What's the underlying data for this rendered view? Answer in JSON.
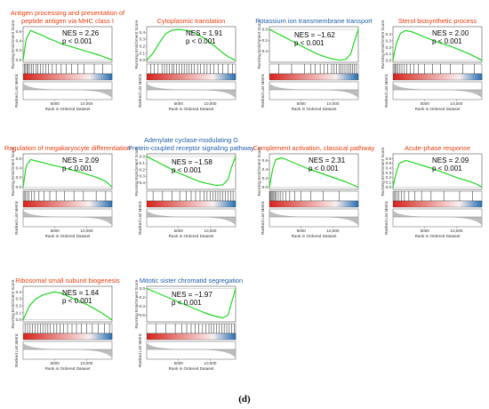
{
  "caption": "(d)",
  "colors": {
    "up_title": "#e8400f",
    "down_title": "#1f5fa8",
    "es_line": "#1fd81f",
    "heat_red": "#d7261e",
    "heat_blue": "#2f74b5",
    "metric_fill": "#bdbdbd"
  },
  "chart_data": [
    {
      "type": "line",
      "title": "Antigen processing and presentation of peptide antigen via MHC class I",
      "title_lines": [
        "Antigen processing and presentation of",
        "peptide antigen via MHC class I"
      ],
      "direction": "up",
      "nes": "NES = 2.26",
      "pval": "p < 0.001",
      "ylabel": "Running Enrichment Score",
      "metric_label": "Ranked List Metric",
      "xlabel": "Rank in Ordered Dataset",
      "yticks": [
        "0.6",
        "0.4",
        "0.2",
        "0.0"
      ],
      "ylim": [
        -0.05,
        0.7
      ],
      "xticks": [
        "5000",
        "10,000"
      ],
      "x": [
        0,
        500,
        1200,
        2000,
        3000,
        4000,
        5000,
        6000,
        7000,
        8000,
        9000,
        10000,
        11000,
        12000,
        13000,
        14000
      ],
      "es": [
        0.0,
        0.45,
        0.62,
        0.57,
        0.52,
        0.45,
        0.4,
        0.34,
        0.3,
        0.26,
        0.22,
        0.18,
        0.14,
        0.1,
        0.05,
        0.0
      ],
      "hits": [
        200,
        400,
        600,
        800,
        1000,
        1300,
        1600,
        2000,
        2300,
        2700,
        3100,
        3600,
        4000,
        4600,
        5200,
        6000,
        6800,
        7600,
        8600,
        9600,
        11200,
        12500
      ]
    },
    {
      "type": "line",
      "title": "Cytoplasmic translation",
      "title_lines": [
        "Cytoplasmic translation"
      ],
      "direction": "up",
      "nes": "NES = 1.91",
      "pval": "p < 0.001",
      "ylabel": "Running Enrichment Score",
      "metric_label": "Ranked List Metric",
      "xlabel": "Rank in Ordered Dataset",
      "yticks": [
        "0.4",
        "0.3",
        "0.2",
        "0.1",
        "0.0"
      ],
      "ylim": [
        -0.03,
        0.48
      ],
      "xticks": [
        "5000",
        "10,000"
      ],
      "x": [
        0,
        1000,
        2000,
        3000,
        4000,
        5000,
        6000,
        7000,
        8000,
        9000,
        10000,
        11000,
        12000,
        13000,
        14000
      ],
      "es": [
        0.0,
        0.1,
        0.25,
        0.38,
        0.43,
        0.44,
        0.43,
        0.41,
        0.37,
        0.32,
        0.25,
        0.18,
        0.1,
        0.04,
        0.0
      ],
      "hits": [
        600,
        1200,
        1800,
        2400,
        2800,
        3200,
        3600,
        4000,
        4300,
        4700,
        5100,
        5500,
        5900,
        6300,
        6700,
        7100,
        7500,
        8000,
        8500,
        9000,
        9500,
        10000,
        10600,
        11300,
        12000,
        12800,
        13500
      ]
    },
    {
      "type": "line",
      "title": "Potassium ion transmembrane transport",
      "title_lines": [
        "Potassium ion transmembrane transport"
      ],
      "direction": "down",
      "nes": "NES = −1.62",
      "pval": "p < 0.001",
      "ylabel": "Running Enrichment Score",
      "metric_label": "Ranked List Metric",
      "xlabel": "Rank in Ordered Dataset",
      "yticks": [
        "0.0",
        "−0.2",
        "−0.4"
      ],
      "ylim": [
        -0.6,
        0.05
      ],
      "xticks": [
        "5000",
        "10,000"
      ],
      "x": [
        0,
        1000,
        2000,
        3000,
        4000,
        5000,
        6000,
        7000,
        8000,
        9000,
        10000,
        11000,
        12000,
        12800,
        13300,
        14000
      ],
      "es": [
        0.0,
        -0.06,
        -0.12,
        -0.18,
        -0.24,
        -0.3,
        -0.36,
        -0.42,
        -0.47,
        -0.51,
        -0.54,
        -0.56,
        -0.55,
        -0.45,
        -0.25,
        0.0
      ],
      "hits": [
        1500,
        3500,
        5500,
        6500,
        7200,
        8000,
        8600,
        9200,
        9800,
        10200,
        10600,
        11000,
        11300,
        11600,
        11900,
        12200,
        12500,
        12800,
        13100,
        13400,
        13700
      ]
    },
    {
      "type": "line",
      "title": "Sterol biosynthetic process",
      "title_lines": [
        "Sterol biosynthetic process"
      ],
      "direction": "up",
      "nes": "NES = 2.00",
      "pval": "p < 0.001",
      "ylabel": "Running Enrichment Score",
      "metric_label": "Ranked List Metric",
      "xlabel": "Rank in Ordered Dataset",
      "yticks": [
        "0.4",
        "0.3",
        "0.2",
        "0.1",
        "0.0"
      ],
      "ylim": [
        -0.03,
        0.52
      ],
      "xticks": [
        "5000",
        "10,000"
      ],
      "x": [
        0,
        500,
        1200,
        2000,
        3000,
        4000,
        5000,
        6000,
        7000,
        8000,
        9000,
        10000,
        11000,
        12000,
        13000,
        14000
      ],
      "es": [
        0.0,
        0.25,
        0.42,
        0.46,
        0.44,
        0.4,
        0.36,
        0.32,
        0.28,
        0.25,
        0.22,
        0.18,
        0.14,
        0.1,
        0.05,
        0.0
      ],
      "hits": [
        150,
        350,
        550,
        800,
        1100,
        1400,
        1800,
        2200,
        2700,
        3300,
        4000,
        5000,
        6200,
        7500,
        9000,
        11000,
        12800
      ]
    },
    {
      "type": "line",
      "title": "Regulation of megakaryocyte differentiation",
      "title_lines": [
        "Regulation of megakaryocyte differentiation"
      ],
      "direction": "up",
      "nes": "NES = 2.09",
      "pval": "p < 0.001",
      "ylabel": "Running Enrichment Score",
      "metric_label": "Ranked List Metric",
      "xlabel": "Rank in Ordered Dataset",
      "yticks": [
        "0.6",
        "0.4",
        "0.2",
        "0.0"
      ],
      "ylim": [
        -0.05,
        0.7
      ],
      "xticks": [
        "5000",
        "10,000"
      ],
      "x": [
        0,
        500,
        1200,
        2000,
        3000,
        4000,
        5000,
        6000,
        7000,
        8000,
        9000,
        10000,
        11000,
        12000,
        13000,
        14000
      ],
      "es": [
        0.0,
        0.45,
        0.58,
        0.55,
        0.52,
        0.48,
        0.45,
        0.42,
        0.38,
        0.35,
        0.31,
        0.27,
        0.23,
        0.18,
        0.12,
        0.0
      ],
      "hits": [
        150,
        350,
        600,
        900,
        1300,
        1800,
        2500,
        3300,
        4200,
        5200,
        6500,
        8000,
        9500,
        11500,
        13000
      ]
    },
    {
      "type": "line",
      "title": "Adenylate cyclase-modulating G Protein-coupled receptor signaling pathway",
      "title_lines": [
        "Adenylate cyclase-modulating G",
        "Protein-coupled receptor signaling pathway"
      ],
      "direction": "down",
      "nes": "NES = −1.58",
      "pval": "p < 0.001",
      "ylabel": "Running Enrichment Score",
      "metric_label": "Ranked List Metric",
      "xlabel": "Rank in Ordered Dataset",
      "yticks": [
        "0.0",
        "−0.1",
        "−0.2",
        "−0.3",
        "−0.4"
      ],
      "ylim": [
        -0.5,
        0.04
      ],
      "xticks": [
        "5000",
        "10,000"
      ],
      "x": [
        0,
        1000,
        2000,
        3000,
        4000,
        5000,
        6000,
        7000,
        8000,
        9000,
        10000,
        11000,
        12000,
        12800,
        13300,
        14000
      ],
      "es": [
        0.0,
        -0.05,
        -0.1,
        -0.15,
        -0.2,
        -0.25,
        -0.29,
        -0.33,
        -0.37,
        -0.4,
        -0.42,
        -0.44,
        -0.43,
        -0.35,
        -0.18,
        0.0
      ],
      "hits": [
        1000,
        2500,
        4000,
        5200,
        6200,
        7000,
        7700,
        8400,
        9000,
        9500,
        10000,
        10400,
        10800,
        11200,
        11600,
        12000,
        12400,
        12800,
        13200,
        13600
      ]
    },
    {
      "type": "line",
      "title": "Complement activation, classical pathway",
      "title_lines": [
        "Complement activation, classical pathway"
      ],
      "direction": "up",
      "nes": "NES = 2.31",
      "pval": "p < 0.001",
      "ylabel": "Running Enrichment Score",
      "metric_label": "Ranked List Metric",
      "xlabel": "Rank in Ordered Dataset",
      "yticks": [
        "0.6",
        "0.4",
        "0.2",
        "0.0"
      ],
      "ylim": [
        -0.05,
        0.75
      ],
      "xticks": [
        "5000",
        "10,000"
      ],
      "x": [
        0,
        500,
        1000,
        2000,
        3000,
        4000,
        5000,
        6000,
        7000,
        8000,
        9000,
        10000,
        11000,
        12000,
        13000,
        14000
      ],
      "es": [
        0.0,
        0.4,
        0.62,
        0.66,
        0.6,
        0.54,
        0.48,
        0.42,
        0.37,
        0.32,
        0.27,
        0.22,
        0.17,
        0.12,
        0.06,
        0.0
      ],
      "hits": [
        100,
        250,
        400,
        550,
        700,
        900,
        1100,
        1400,
        1700,
        2100,
        2600,
        3200,
        4000,
        5000,
        6500,
        8500,
        11000
      ]
    },
    {
      "type": "line",
      "title": "Acute-phase response",
      "title_lines": [
        "Acute-phase response"
      ],
      "direction": "up",
      "nes": "NES = 2.09",
      "pval": "p < 0.001",
      "ylabel": "Running Enrichment Score",
      "metric_label": "Ranked List Metric",
      "xlabel": "Rank in Ordered Dataset",
      "yticks": [
        "0.6",
        "0.5",
        "0.4",
        "0.3",
        "0.2",
        "0.1",
        "0.0"
      ],
      "ylim": [
        -0.05,
        0.7
      ],
      "xticks": [
        "5000",
        "10,000"
      ],
      "x": [
        0,
        500,
        1000,
        2000,
        3000,
        4000,
        5000,
        6000,
        7000,
        8000,
        9000,
        10000,
        11000,
        12000,
        13000,
        14000
      ],
      "es": [
        0.0,
        0.3,
        0.5,
        0.56,
        0.52,
        0.48,
        0.44,
        0.4,
        0.35,
        0.3,
        0.25,
        0.2,
        0.16,
        0.12,
        0.07,
        0.0
      ],
      "hits": [
        150,
        350,
        600,
        900,
        1300,
        1800,
        2500,
        3400,
        4500,
        6000,
        8000,
        10500,
        12500
      ]
    },
    {
      "type": "line",
      "title": "Ribosomal small subunit biogenesis",
      "title_lines": [
        "Ribosomal small subunit biogenesis"
      ],
      "direction": "up",
      "nes": "NES = 1.64",
      "pval": "p < 0.001",
      "ylabel": "Running Enrichment Score",
      "metric_label": "Ranked List Metric",
      "xlabel": "Rank in Ordered Dataset",
      "yticks": [
        "0.4",
        "0.3",
        "0.2",
        "0.1",
        "0.0"
      ],
      "ylim": [
        -0.03,
        0.48
      ],
      "xticks": [
        "5000",
        "10,000"
      ],
      "x": [
        0,
        1000,
        2000,
        3000,
        4000,
        5000,
        6000,
        7000,
        8000,
        9000,
        10000,
        11000,
        12000,
        13000,
        14000
      ],
      "es": [
        0.0,
        0.2,
        0.3,
        0.35,
        0.38,
        0.4,
        0.38,
        0.34,
        0.3,
        0.26,
        0.22,
        0.17,
        0.12,
        0.06,
        0.0
      ],
      "hits": [
        300,
        700,
        1100,
        1500,
        1900,
        2300,
        2700,
        3100,
        3500,
        3900,
        4300,
        4800,
        5300,
        5800,
        6400,
        7000,
        7700,
        8400,
        9200,
        10000,
        10900,
        11800,
        12800,
        13600
      ]
    },
    {
      "type": "line",
      "title": "Mitotic sister chromatid segregation",
      "title_lines": [
        "Mitotic sister chromatid segregation"
      ],
      "direction": "down",
      "nes": "NES = −1.97",
      "pval": "p < 0.001",
      "ylabel": "Running Enrichment Score",
      "metric_label": "Ranked List Metric",
      "xlabel": "Rank in Ordered Dataset",
      "yticks": [
        "0.0",
        "−0.2",
        "−0.4",
        "−0.6"
      ],
      "ylim": [
        -0.75,
        0.05
      ],
      "xticks": [
        "5000",
        "10,000"
      ],
      "x": [
        0,
        1000,
        2000,
        3000,
        4000,
        5000,
        6000,
        7000,
        8000,
        9000,
        10000,
        11000,
        12000,
        12800,
        13400,
        14000
      ],
      "es": [
        0.0,
        -0.06,
        -0.12,
        -0.18,
        -0.24,
        -0.3,
        -0.36,
        -0.42,
        -0.48,
        -0.54,
        -0.59,
        -0.63,
        -0.66,
        -0.6,
        -0.3,
        0.0
      ],
      "hits": [
        1500,
        3000,
        4500,
        5500,
        6300,
        7000,
        7600,
        8200,
        8800,
        9300,
        9800,
        10200,
        10600,
        11000,
        11400,
        11800,
        12200,
        12600,
        13000,
        13400,
        13800
      ]
    }
  ]
}
